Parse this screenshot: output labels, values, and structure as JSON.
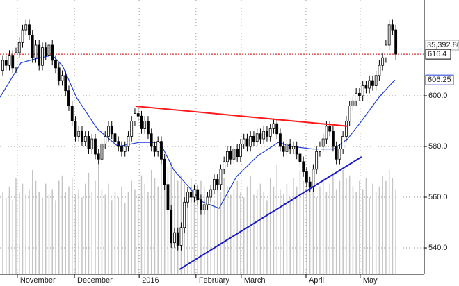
{
  "chart_data": {
    "type": "candlestick",
    "xlim": [
      -0.84,
      127.6
    ],
    "ylim": [
      529.6,
      637.8
    ],
    "yticks": [
      {
        "value": 540,
        "label": "540.0"
      },
      {
        "value": 560,
        "label": "560.0"
      },
      {
        "value": 580,
        "label": "580.0"
      },
      {
        "value": 600,
        "label": "600.0"
      }
    ],
    "xticks": [
      {
        "value": 4.4,
        "label": "November"
      },
      {
        "value": 21.7,
        "label": "December"
      },
      {
        "value": 41.3,
        "label": "2016"
      },
      {
        "value": 58.5,
        "label": "February"
      },
      {
        "value": 72.2,
        "label": "March"
      },
      {
        "value": 91.8,
        "label": "April"
      },
      {
        "value": 108.2,
        "label": "May"
      }
    ],
    "grid": true,
    "open": [
      610,
      614,
      612,
      616,
      611,
      617,
      621,
      626,
      628,
      624,
      615,
      620,
      612,
      619,
      616,
      620,
      614,
      611,
      606,
      608,
      602,
      596,
      590,
      584,
      586,
      582,
      584,
      579,
      583,
      577,
      575,
      581,
      584,
      588,
      585,
      582,
      580,
      578,
      580,
      584,
      590,
      593,
      592,
      587,
      590,
      585,
      580,
      578,
      582,
      575,
      565,
      555,
      542,
      546,
      541,
      548,
      558,
      562,
      560,
      563,
      559,
      555,
      557,
      560,
      563,
      567,
      565,
      571,
      574,
      578,
      575,
      579,
      576,
      581,
      583,
      580,
      584,
      582,
      585,
      583,
      586,
      584,
      587,
      589,
      585,
      580,
      578,
      581,
      579,
      580,
      577,
      574,
      570,
      566,
      564,
      571,
      578,
      580,
      583,
      588,
      586,
      580,
      575,
      579,
      584,
      590,
      596,
      598,
      601,
      600,
      604,
      603,
      606,
      604,
      608,
      612,
      615,
      620,
      628,
      626
    ],
    "high": [
      616,
      616,
      618,
      618,
      619,
      623,
      628,
      630,
      630,
      626,
      622,
      622,
      621,
      621,
      622,
      622,
      616,
      613,
      610,
      610,
      604,
      598,
      592,
      588,
      588,
      586,
      586,
      585,
      585,
      579,
      583,
      586,
      590,
      590,
      587,
      584,
      582,
      582,
      586,
      592,
      595,
      595,
      594,
      592,
      592,
      587,
      582,
      584,
      584,
      577,
      567,
      557,
      548,
      548,
      550,
      560,
      564,
      564,
      565,
      565,
      561,
      559,
      562,
      565,
      569,
      569,
      573,
      576,
      580,
      580,
      581,
      581,
      583,
      585,
      585,
      586,
      586,
      587,
      587,
      588,
      588,
      589,
      591,
      591,
      587,
      582,
      583,
      583,
      582,
      582,
      579,
      576,
      572,
      568,
      573,
      580,
      582,
      585,
      590,
      590,
      588,
      582,
      581,
      586,
      592,
      598,
      600,
      603,
      603,
      606,
      606,
      608,
      608,
      610,
      614,
      617,
      622,
      630,
      630,
      628
    ],
    "low": [
      608,
      610,
      610,
      609,
      609,
      615,
      619,
      624,
      622,
      613,
      613,
      610,
      610,
      614,
      614,
      612,
      609,
      604,
      604,
      600,
      594,
      588,
      582,
      582,
      580,
      580,
      577,
      577,
      575,
      573,
      573,
      579,
      582,
      583,
      580,
      578,
      576,
      576,
      578,
      582,
      588,
      590,
      585,
      585,
      583,
      578,
      576,
      576,
      573,
      563,
      553,
      540,
      540,
      539,
      539,
      546,
      556,
      558,
      558,
      557,
      553,
      553,
      555,
      558,
      561,
      563,
      563,
      569,
      572,
      573,
      573,
      574,
      574,
      579,
      578,
      578,
      580,
      580,
      581,
      581,
      582,
      582,
      585,
      583,
      578,
      576,
      576,
      577,
      577,
      575,
      572,
      568,
      564,
      562,
      562,
      569,
      576,
      578,
      581,
      584,
      578,
      573,
      573,
      577,
      582,
      588,
      594,
      596,
      598,
      598,
      601,
      601,
      602,
      602,
      606,
      610,
      613,
      618,
      624,
      614
    ],
    "close": [
      614,
      612,
      616,
      611,
      617,
      621,
      626,
      628,
      624,
      615,
      620,
      612,
      619,
      616,
      620,
      614,
      611,
      606,
      608,
      602,
      596,
      590,
      584,
      586,
      582,
      584,
      579,
      583,
      577,
      575,
      581,
      584,
      588,
      585,
      582,
      580,
      578,
      580,
      584,
      590,
      593,
      592,
      587,
      590,
      585,
      580,
      578,
      582,
      575,
      565,
      555,
      542,
      546,
      541,
      548,
      558,
      562,
      560,
      563,
      559,
      555,
      557,
      560,
      563,
      567,
      565,
      571,
      574,
      578,
      575,
      579,
      576,
      581,
      583,
      580,
      584,
      582,
      585,
      583,
      586,
      584,
      587,
      589,
      585,
      580,
      578,
      581,
      579,
      580,
      577,
      574,
      570,
      566,
      564,
      571,
      578,
      580,
      583,
      588,
      586,
      580,
      575,
      579,
      584,
      590,
      596,
      598,
      601,
      600,
      604,
      603,
      606,
      604,
      608,
      612,
      615,
      620,
      628,
      626,
      616.4
    ],
    "volume": [
      30,
      28,
      32,
      27,
      35,
      30,
      33,
      29,
      31,
      38,
      34,
      30,
      28,
      33,
      29,
      31,
      27,
      34,
      36,
      30,
      32,
      35,
      29,
      31,
      28,
      33,
      37,
      30,
      34,
      40,
      31,
      29,
      33,
      27,
      30,
      28,
      32,
      26,
      30,
      34,
      31,
      29,
      36,
      33,
      30,
      38,
      35,
      32,
      40,
      42,
      39,
      41,
      37,
      34,
      36,
      33,
      31,
      35,
      30,
      28,
      34,
      32,
      29,
      31,
      27,
      33,
      30,
      35,
      32,
      29,
      31,
      34,
      30,
      28,
      32,
      36,
      29,
      31,
      33,
      30,
      27,
      35,
      32,
      40,
      31,
      29,
      33,
      28,
      35,
      32,
      38,
      34,
      36,
      33,
      30,
      28,
      32,
      35,
      30,
      33,
      37,
      31,
      34,
      38,
      35,
      36,
      32,
      30,
      34,
      31,
      35,
      28,
      33,
      30,
      32,
      36,
      34,
      38,
      35,
      31
    ],
    "vlim": [
      0,
      100
    ],
    "volume_label": "35,392.80",
    "ma": {
      "color": "#1f3fd8",
      "x": [
        -0.84,
        5.5,
        9.7,
        15,
        18.1,
        22.3,
        28.6,
        34.9,
        41.3,
        47.6,
        51.8,
        60.2,
        65.5,
        70.7,
        77.1,
        83.4,
        87.6,
        93.9,
        100.2,
        104.4,
        108.6,
        113.9,
        118.7
      ],
      "values": [
        599.4,
        613,
        614.5,
        616,
        611.8,
        599.4,
        587,
        580,
        581.6,
        581.6,
        570.7,
        558.3,
        555.6,
        568,
        576.2,
        581.6,
        580,
        579,
        579,
        583,
        590,
        599.4,
        606.25
      ]
    },
    "trendlines": [
      {
        "color": "#ff1a1a",
        "x": [
          40.2,
          104.4
        ],
        "values": [
          595.9,
          588
        ]
      },
      {
        "color": "#1a1ac8",
        "x": [
          53.5,
          108.6
        ],
        "values": [
          531.5,
          575.9
        ]
      }
    ],
    "last_line_color": "#cc0000"
  }
}
